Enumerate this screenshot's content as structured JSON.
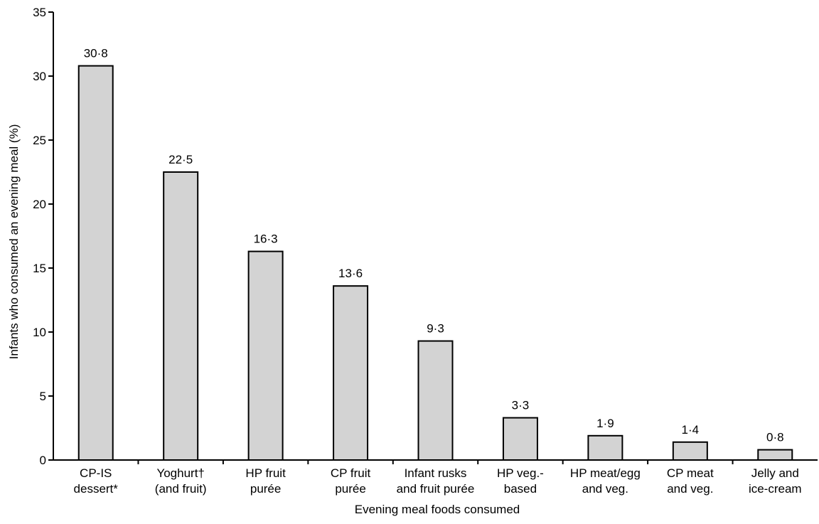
{
  "chart_data": {
    "type": "bar",
    "xlabel": "Evening meal foods consumed",
    "ylabel": "Infants who consumed an evening meal (%)",
    "ylim": [
      0,
      35
    ],
    "yticks": [
      "0",
      "5",
      "10",
      "15",
      "20",
      "25",
      "30",
      "35"
    ],
    "categories": [
      [
        "CP-IS",
        "dessert*"
      ],
      [
        "Yoghurt†",
        "(and fruit)"
      ],
      [
        "HP fruit",
        "purée"
      ],
      [
        "CP fruit",
        "purée"
      ],
      [
        "Infant rusks",
        "and fruit purée"
      ],
      [
        "HP veg.-",
        "based"
      ],
      [
        "HP meat/egg",
        "and veg."
      ],
      [
        "CP meat",
        "and veg."
      ],
      [
        "Jelly and",
        "ice-cream"
      ]
    ],
    "values": [
      30.8,
      22.5,
      16.3,
      13.6,
      9.3,
      3.3,
      1.9,
      1.4,
      0.8
    ],
    "value_labels": [
      "30·8",
      "22·5",
      "16·3",
      "13·6",
      "9·3",
      "3·3",
      "1·9",
      "1·4",
      "0·8"
    ],
    "bar_color": "#d3d3d3",
    "grid": false
  }
}
